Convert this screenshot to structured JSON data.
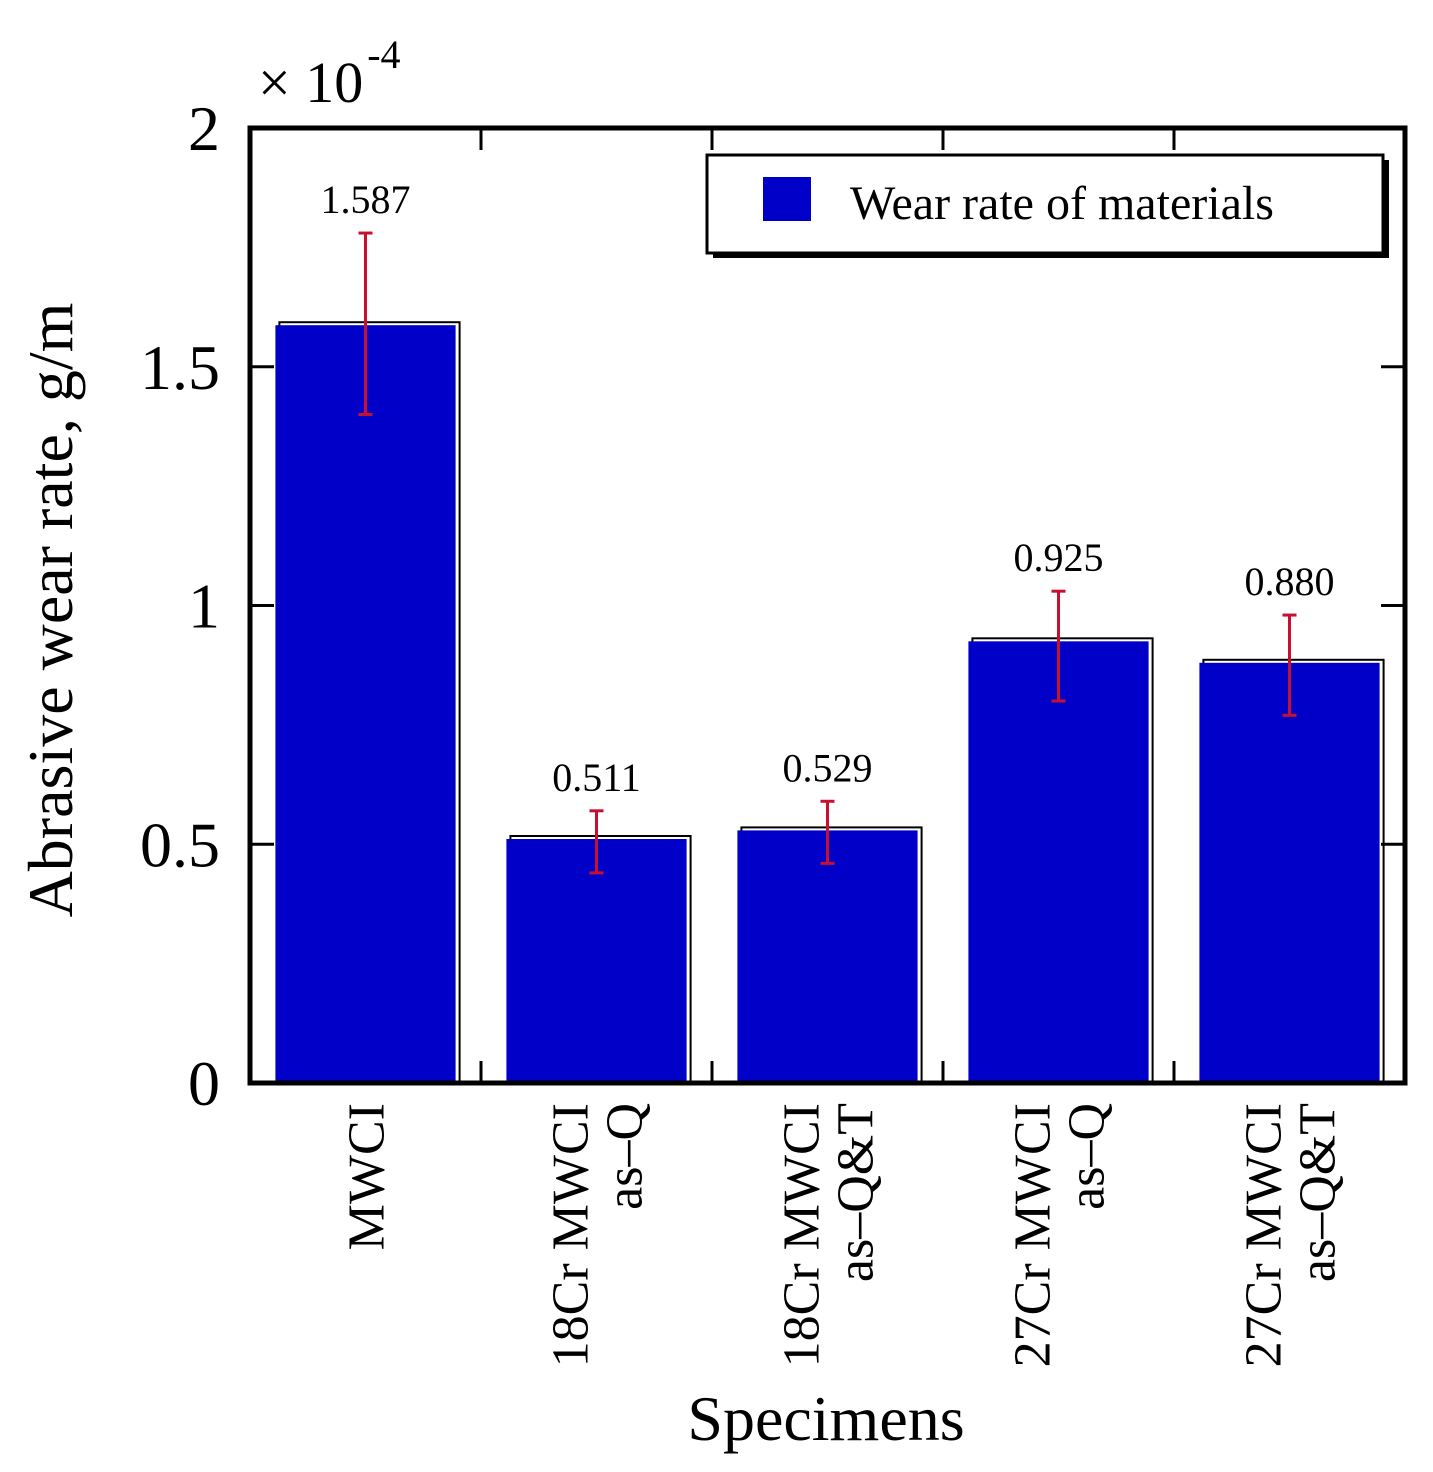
{
  "chart_data": {
    "type": "bar",
    "categories": [
      [
        "MWCI"
      ],
      [
        "18Cr MWCI",
        "as–Q"
      ],
      [
        "18Cr MWCI",
        "as–Q&T"
      ],
      [
        "27Cr MWCI",
        "as–Q"
      ],
      [
        "27Cr MWCI",
        "as–Q&T"
      ]
    ],
    "series": [
      {
        "name": "Wear rate of materials",
        "values": [
          1.587,
          0.511,
          0.529,
          0.925,
          0.88
        ],
        "error_low": [
          1.4,
          0.44,
          0.46,
          0.8,
          0.77
        ],
        "error_high": [
          1.78,
          0.57,
          0.59,
          1.03,
          0.98
        ],
        "color": "#0000c8"
      }
    ],
    "value_labels": [
      "1.587",
      "0.511",
      "0.529",
      "0.925",
      "0.880"
    ],
    "xlabel": "Specimens",
    "ylabel": "Abrasive wear rate, g/m",
    "ylim": [
      0,
      2
    ],
    "yticks": [
      0,
      0.5,
      1,
      1.5,
      2
    ],
    "ytick_labels": [
      "0",
      "0.5",
      "1",
      "1.5",
      "2"
    ],
    "y_multiplier": {
      "base": "× 10",
      "exponent": "-4"
    },
    "legend_position": "top-right",
    "error_bar_color": "#c8102e",
    "grid": false
  }
}
